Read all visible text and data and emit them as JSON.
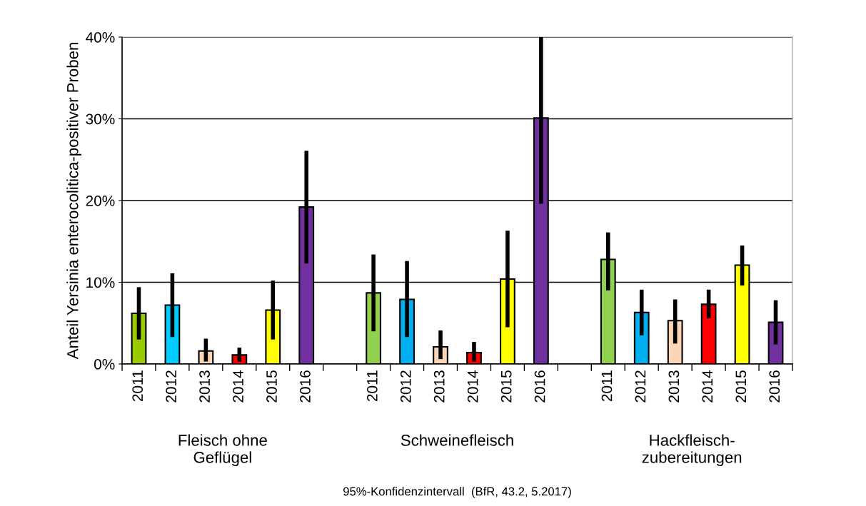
{
  "chart_data": {
    "type": "bar",
    "categories": [
      "2011",
      "2012",
      "2013",
      "2014",
      "2015",
      "2016",
      null,
      "2011",
      "2012",
      "2013",
      "2014",
      "2015",
      "2016",
      null,
      "2011",
      "2012",
      "2013",
      "2014",
      "2015",
      "2016"
    ],
    "values": [
      6.2,
      7.2,
      1.6,
      1.1,
      6.6,
      19.2,
      null,
      8.7,
      7.9,
      2.1,
      1.4,
      10.4,
      30.1,
      null,
      12.8,
      6.3,
      5.3,
      7.3,
      12.1,
      5.1
    ],
    "errors": [
      [
        3.0,
        9.4
      ],
      [
        3.3,
        11.1
      ],
      [
        0.3,
        3.1
      ],
      [
        0.3,
        2.0
      ],
      [
        3.0,
        10.2
      ],
      [
        12.3,
        26.1
      ],
      null,
      [
        4.0,
        13.4
      ],
      [
        3.3,
        12.6
      ],
      [
        0.6,
        4.1
      ],
      [
        0.3,
        2.7
      ],
      [
        4.5,
        16.3
      ],
      [
        19.6,
        40.0
      ],
      null,
      [
        9.0,
        16.1
      ],
      [
        3.5,
        9.1
      ],
      [
        2.5,
        7.9
      ],
      [
        5.6,
        9.1
      ],
      [
        9.6,
        14.5
      ],
      [
        2.4,
        7.8
      ]
    ],
    "colors": [
      "#99cc00",
      "#00ccff",
      "#fbd5b5",
      "#ff0000",
      "#ffff00",
      "#7030a0",
      null,
      "#92d050",
      "#00b0f0",
      "#fbd5b5",
      "#ff0000",
      "#ffff00",
      "#7030a0",
      null,
      "#92d050",
      "#00b0f0",
      "#fbd5b5",
      "#ff0000",
      "#ffff00",
      "#7030a0"
    ],
    "ylabel": "Anteil Yersinia enterocolitica-positiver Proben",
    "ylim": [
      0,
      40
    ],
    "yticks": [
      {
        "value": 0,
        "label": "0%"
      },
      {
        "value": 10,
        "label": "10%"
      },
      {
        "value": 20,
        "label": "20%"
      },
      {
        "value": 30,
        "label": "30%"
      },
      {
        "value": 40,
        "label": "40%"
      }
    ],
    "grid": "y",
    "annotations": [
      "Fleisch ohne\nGeflügel",
      "Schweinefleisch",
      "Hackfleisch-\nzubereitungen",
      "95%-Konfidenzintervall  (BfR, 43.2, 5.2017)"
    ]
  }
}
